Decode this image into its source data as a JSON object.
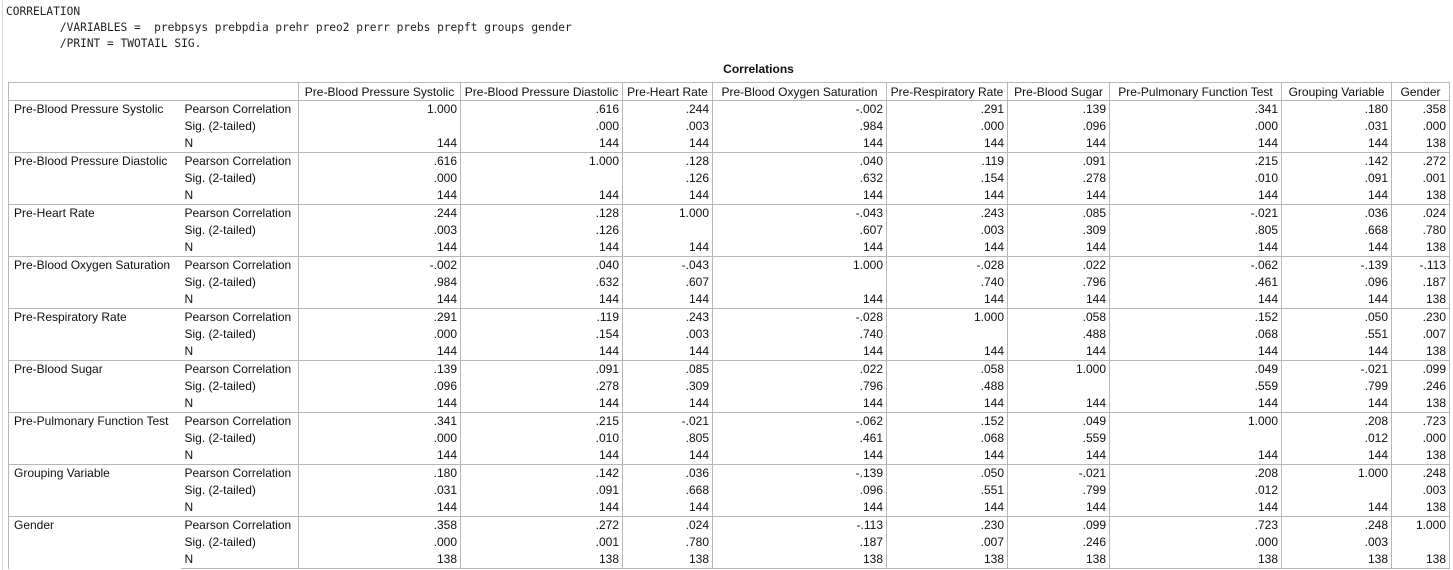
{
  "syntax": [
    "CORRELATION",
    "        /VARIABLES =  prebpsys prebpdia prehr preo2 prerr prebs prepft groups gender",
    "        /PRINT = TWOTAIL SIG."
  ],
  "table": {
    "title": "Correlations",
    "columns": [
      "Pre-Blood Pressure Systolic",
      "Pre-Blood Pressure Diastolic",
      "Pre-Heart Rate",
      "Pre-Blood  Oxygen Saturation",
      "Pre-Respiratory Rate",
      "Pre-Blood Sugar",
      "Pre-Pulmonary Function Test",
      "Grouping Variable",
      "Gender"
    ],
    "stat_labels": [
      "Pearson Correlation",
      "Sig. (2-tailed)",
      "N"
    ],
    "rows": [
      {
        "name": "Pre-Blood Pressure Systolic",
        "r": [
          "1.000",
          ".616",
          ".244",
          "-.002",
          ".291",
          ".139",
          ".341",
          ".180",
          ".358"
        ],
        "sig": [
          "",
          ".000",
          ".003",
          ".984",
          ".000",
          ".096",
          ".000",
          ".031",
          ".000"
        ],
        "n": [
          "144",
          "144",
          "144",
          "144",
          "144",
          "144",
          "144",
          "144",
          "138"
        ]
      },
      {
        "name": "Pre-Blood Pressure Diastolic",
        "r": [
          ".616",
          "1.000",
          ".128",
          ".040",
          ".119",
          ".091",
          ".215",
          ".142",
          ".272"
        ],
        "sig": [
          ".000",
          "",
          ".126",
          ".632",
          ".154",
          ".278",
          ".010",
          ".091",
          ".001"
        ],
        "n": [
          "144",
          "144",
          "144",
          "144",
          "144",
          "144",
          "144",
          "144",
          "138"
        ]
      },
      {
        "name": "Pre-Heart Rate",
        "r": [
          ".244",
          ".128",
          "1.000",
          "-.043",
          ".243",
          ".085",
          "-.021",
          ".036",
          ".024"
        ],
        "sig": [
          ".003",
          ".126",
          "",
          ".607",
          ".003",
          ".309",
          ".805",
          ".668",
          ".780"
        ],
        "n": [
          "144",
          "144",
          "144",
          "144",
          "144",
          "144",
          "144",
          "144",
          "138"
        ]
      },
      {
        "name": "Pre-Blood  Oxygen Saturation",
        "r": [
          "-.002",
          ".040",
          "-.043",
          "1.000",
          "-.028",
          ".022",
          "-.062",
          "-.139",
          "-.113"
        ],
        "sig": [
          ".984",
          ".632",
          ".607",
          "",
          ".740",
          ".796",
          ".461",
          ".096",
          ".187"
        ],
        "n": [
          "144",
          "144",
          "144",
          "144",
          "144",
          "144",
          "144",
          "144",
          "138"
        ]
      },
      {
        "name": "Pre-Respiratory Rate",
        "r": [
          ".291",
          ".119",
          ".243",
          "-.028",
          "1.000",
          ".058",
          ".152",
          ".050",
          ".230"
        ],
        "sig": [
          ".000",
          ".154",
          ".003",
          ".740",
          "",
          ".488",
          ".068",
          ".551",
          ".007"
        ],
        "n": [
          "144",
          "144",
          "144",
          "144",
          "144",
          "144",
          "144",
          "144",
          "138"
        ]
      },
      {
        "name": "Pre-Blood Sugar",
        "r": [
          ".139",
          ".091",
          ".085",
          ".022",
          ".058",
          "1.000",
          ".049",
          "-.021",
          ".099"
        ],
        "sig": [
          ".096",
          ".278",
          ".309",
          ".796",
          ".488",
          "",
          ".559",
          ".799",
          ".246"
        ],
        "n": [
          "144",
          "144",
          "144",
          "144",
          "144",
          "144",
          "144",
          "144",
          "138"
        ]
      },
      {
        "name": "Pre-Pulmonary Function Test",
        "r": [
          ".341",
          ".215",
          "-.021",
          "-.062",
          ".152",
          ".049",
          "1.000",
          ".208",
          ".723"
        ],
        "sig": [
          ".000",
          ".010",
          ".805",
          ".461",
          ".068",
          ".559",
          "",
          ".012",
          ".000"
        ],
        "n": [
          "144",
          "144",
          "144",
          "144",
          "144",
          "144",
          "144",
          "144",
          "138"
        ]
      },
      {
        "name": "Grouping Variable",
        "r": [
          ".180",
          ".142",
          ".036",
          "-.139",
          ".050",
          "-.021",
          ".208",
          "1.000",
          ".248"
        ],
        "sig": [
          ".031",
          ".091",
          ".668",
          ".096",
          ".551",
          ".799",
          ".012",
          "",
          ".003"
        ],
        "n": [
          "144",
          "144",
          "144",
          "144",
          "144",
          "144",
          "144",
          "144",
          "138"
        ]
      },
      {
        "name": "Gender",
        "r": [
          ".358",
          ".272",
          ".024",
          "-.113",
          ".230",
          ".099",
          ".723",
          ".248",
          "1.000"
        ],
        "sig": [
          ".000",
          ".001",
          ".780",
          ".187",
          ".007",
          ".246",
          ".000",
          ".003",
          ""
        ],
        "n": [
          "138",
          "138",
          "138",
          "138",
          "138",
          "138",
          "138",
          "138",
          "138"
        ]
      }
    ]
  }
}
